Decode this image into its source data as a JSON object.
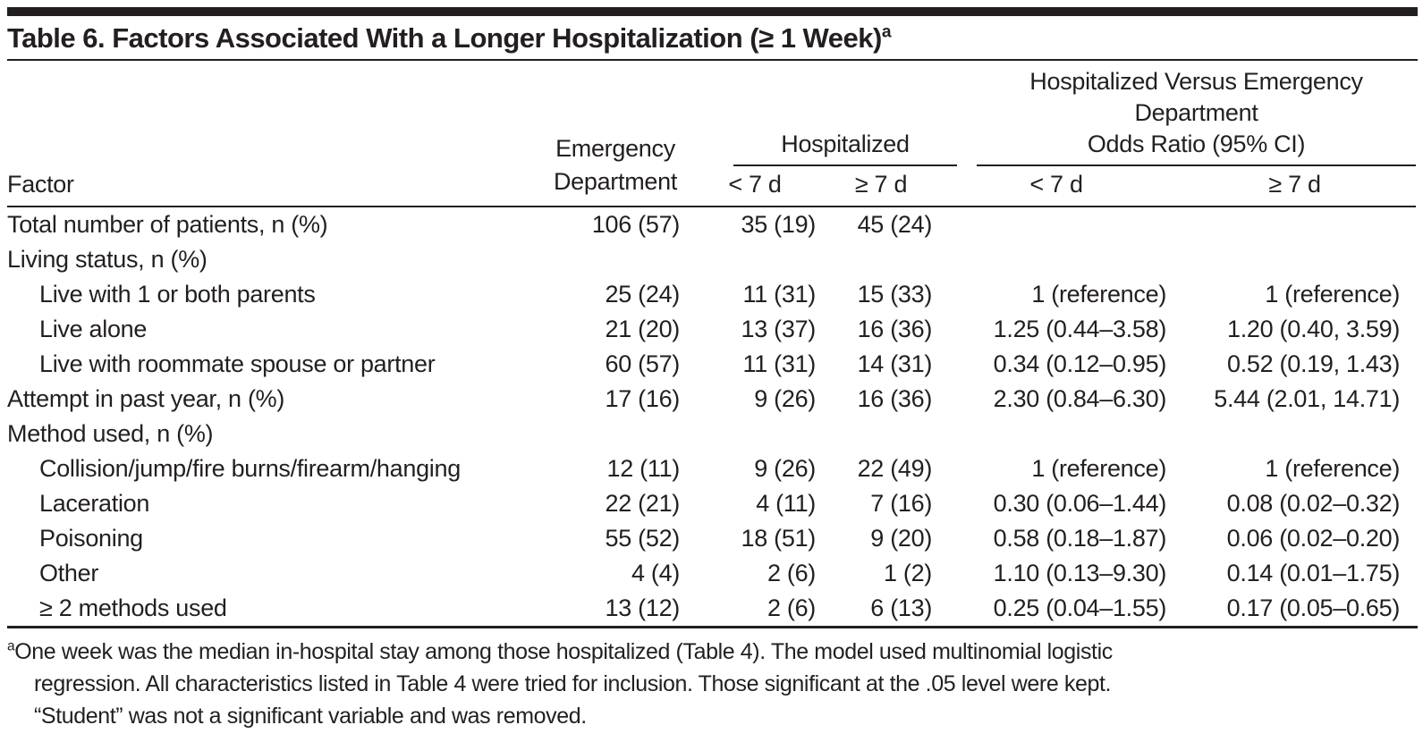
{
  "title": {
    "text": "Table 6. Factors Associated With a Longer Hospitalization (≥ 1 Week)",
    "superscript": "a"
  },
  "header": {
    "factor": "Factor",
    "emergency_department": {
      "line1": "Emergency",
      "line2": "Department"
    },
    "hospitalized_group": {
      "label": "Hospitalized",
      "sub": [
        "< 7 d",
        "≥ 7 d"
      ]
    },
    "odds_ratio_group": {
      "line1": "Hospitalized Versus Emergency",
      "line2": "Department",
      "line3": "Odds Ratio (95% CI)",
      "sub": [
        "< 7 d",
        "≥ 7 d"
      ]
    }
  },
  "rows": [
    {
      "label": "Total number of patients, n (%)",
      "indent": false,
      "ed": "106 (57)",
      "hosp_lt7": "35 (19)",
      "hosp_ge7": "45 (24)",
      "or_lt7": "",
      "or_ge7": ""
    },
    {
      "label": "Living status, n (%)",
      "indent": false,
      "ed": "",
      "hosp_lt7": "",
      "hosp_ge7": "",
      "or_lt7": "",
      "or_ge7": ""
    },
    {
      "label": "Live with 1 or both parents",
      "indent": true,
      "ed": "25 (24)",
      "hosp_lt7": "11 (31)",
      "hosp_ge7": "15 (33)",
      "or_lt7": "1 (reference)",
      "or_ge7": "1 (reference)"
    },
    {
      "label": "Live alone",
      "indent": true,
      "ed": "21 (20)",
      "hosp_lt7": "13 (37)",
      "hosp_ge7": "16 (36)",
      "or_lt7": "1.25 (0.44–3.58)",
      "or_ge7": "1.20 (0.40, 3.59)"
    },
    {
      "label": "Live with roommate spouse or partner",
      "indent": true,
      "ed": "60 (57)",
      "hosp_lt7": "11 (31)",
      "hosp_ge7": "14 (31)",
      "or_lt7": "0.34 (0.12–0.95)",
      "or_ge7": "0.52 (0.19, 1.43)"
    },
    {
      "label": "Attempt in past year, n (%)",
      "indent": false,
      "ed": "17 (16)",
      "hosp_lt7": "9 (26)",
      "hosp_ge7": "16 (36)",
      "or_lt7": "2.30 (0.84–6.30)",
      "or_ge7": "5.44 (2.01, 14.71)"
    },
    {
      "label": "Method used, n (%)",
      "indent": false,
      "ed": "",
      "hosp_lt7": "",
      "hosp_ge7": "",
      "or_lt7": "",
      "or_ge7": ""
    },
    {
      "label": "Collision/jump/fire burns/firearm/hanging",
      "indent": true,
      "ed": "12 (11)",
      "hosp_lt7": "9 (26)",
      "hosp_ge7": "22 (49)",
      "or_lt7": "1 (reference)",
      "or_ge7": "1 (reference)"
    },
    {
      "label": "Laceration",
      "indent": true,
      "ed": "22 (21)",
      "hosp_lt7": "4 (11)",
      "hosp_ge7": "7 (16)",
      "or_lt7": "0.30 (0.06–1.44)",
      "or_ge7": "0.08 (0.02–0.32)"
    },
    {
      "label": "Poisoning",
      "indent": true,
      "ed": "55 (52)",
      "hosp_lt7": "18 (51)",
      "hosp_ge7": "9 (20)",
      "or_lt7": "0.58 (0.18–1.87)",
      "or_ge7": "0.06 (0.02–0.20)"
    },
    {
      "label": "Other",
      "indent": true,
      "ed": "4 (4)",
      "hosp_lt7": "2 (6)",
      "hosp_ge7": "1 (2)",
      "or_lt7": "1.10 (0.13–9.30)",
      "or_ge7": "0.14 (0.01–1.75)"
    },
    {
      "label": "≥ 2 methods used",
      "indent": true,
      "ed": "13 (12)",
      "hosp_lt7": "2 (6)",
      "hosp_ge7": "6 (13)",
      "or_lt7": "0.25 (0.04–1.55)",
      "or_ge7": "0.17 (0.05–0.65)"
    }
  ],
  "footnote": {
    "marker": "a",
    "lines": [
      "One week was the median in-hospital stay among those hospitalized (Table 4). The model used multinomial logistic",
      "regression. All characteristics listed in Table 4 were tried for inclusion. Those significant at the .05 level were kept.",
      "“Student” was not a significant variable and was removed."
    ]
  },
  "colors": {
    "text": "#231f20",
    "rule": "#231f20",
    "background": "#ffffff"
  }
}
